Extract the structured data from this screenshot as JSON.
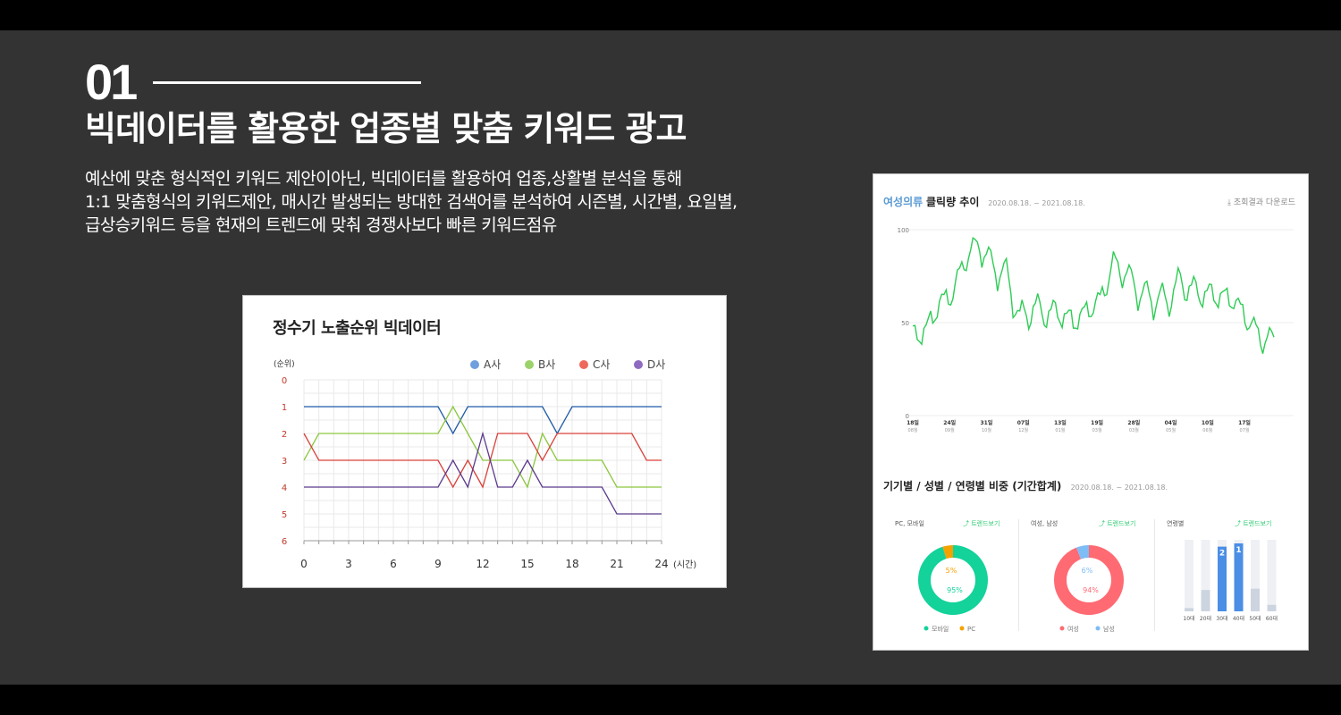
{
  "slide": {
    "number": "01",
    "title": "빅데이터를 활용한 업종별 맞춤 키워드 광고",
    "desc_lines": [
      "예산에 맞춘 형식적인 키워드 제안이아닌, 빅데이터를 활용하여 업종,상활별 분석을 통해",
      "1:1 맞춤형식의 키워드제안, 매시간 발생되는 방대한 검색어를 분석하여 시즌별, 시간별, 요일별,",
      "급상승키워드 등을 현재의 트렌드에 맞춰 경쟁사보다 빠른 키워드점유"
    ]
  },
  "chart1": {
    "title": "정수기 노출순위 빅데이터",
    "ylabel": "(순위)",
    "xlabel": "(시간)",
    "legend": [
      "A사",
      "B사",
      "C사",
      "D사"
    ],
    "colors": {
      "A": "#1f5aa6",
      "B": "#8cc63f",
      "C": "#d9403a",
      "D": "#5b3a8c"
    },
    "legend_colors": [
      "#6f9fdc",
      "#9bd26a",
      "#ee6a5a",
      "#8e6ac0"
    ],
    "grid_color": "#e8e8e8"
  },
  "chart_data": [
    {
      "type": "line",
      "title": "정수기 노출순위 빅데이터",
      "ylabel": "(순위)",
      "xlabel": "(시간)",
      "ylim": [
        0,
        6
      ],
      "y_inverted": true,
      "y_ticks": [
        "0",
        "1",
        "2",
        "3",
        "4",
        "5",
        "6"
      ],
      "xlim": [
        0,
        24
      ],
      "x_ticks": [
        "0",
        "3",
        "6",
        "9",
        "12",
        "15",
        "18",
        "21",
        "24"
      ],
      "x": [
        0,
        1,
        2,
        3,
        4,
        5,
        6,
        7,
        8,
        9,
        10,
        11,
        12,
        13,
        14,
        15,
        16,
        17,
        18,
        19,
        20,
        21,
        22,
        23,
        24
      ],
      "series": [
        {
          "name": "A사",
          "values": [
            1,
            1,
            1,
            1,
            1,
            1,
            1,
            1,
            1,
            1,
            2,
            1,
            1,
            1,
            1,
            1,
            1,
            2,
            1,
            1,
            1,
            1,
            1,
            1,
            1
          ]
        },
        {
          "name": "B사",
          "values": [
            3,
            2,
            2,
            2,
            2,
            2,
            2,
            2,
            2,
            2,
            1,
            2,
            3,
            3,
            3,
            4,
            2,
            3,
            3,
            3,
            3,
            4,
            4,
            4,
            4
          ]
        },
        {
          "name": "C사",
          "values": [
            2,
            3,
            3,
            3,
            3,
            3,
            3,
            3,
            3,
            3,
            4,
            3,
            4,
            2,
            2,
            2,
            3,
            2,
            2,
            2,
            2,
            2,
            2,
            3,
            3
          ]
        },
        {
          "name": "D사",
          "values": [
            4,
            4,
            4,
            4,
            4,
            4,
            4,
            4,
            4,
            4,
            3,
            4,
            2,
            4,
            4,
            3,
            4,
            4,
            4,
            4,
            4,
            5,
            5,
            5,
            5
          ]
        }
      ]
    },
    {
      "type": "line",
      "title": "여성의류 클릭량 추이",
      "ylim": [
        0,
        100
      ],
      "y_ticks": [
        "100",
        "50",
        "0"
      ],
      "x_ticks": [
        [
          "18일",
          "08월"
        ],
        [
          "24일",
          "09월"
        ],
        [
          "31일",
          "10월"
        ],
        [
          "07일",
          "12월"
        ],
        [
          "13일",
          "01월"
        ],
        [
          "19일",
          "03월"
        ],
        [
          "28일",
          "03월"
        ],
        [
          "04일",
          "05월"
        ],
        [
          "10일",
          "06월"
        ],
        [
          "17일",
          "07월"
        ]
      ],
      "color": "#2ecc55",
      "anchors": [
        [
          0,
          42
        ],
        [
          6,
          46
        ],
        [
          12,
          60
        ],
        [
          18,
          66
        ],
        [
          24,
          86
        ],
        [
          30,
          92
        ],
        [
          36,
          80
        ],
        [
          42,
          76
        ],
        [
          48,
          52
        ],
        [
          54,
          58
        ],
        [
          60,
          55
        ],
        [
          66,
          55
        ],
        [
          72,
          50
        ],
        [
          78,
          56
        ],
        [
          84,
          62
        ],
        [
          90,
          82
        ],
        [
          96,
          76
        ],
        [
          102,
          66
        ],
        [
          108,
          63
        ],
        [
          114,
          62
        ],
        [
          120,
          72
        ],
        [
          126,
          67
        ],
        [
          132,
          65
        ],
        [
          138,
          64
        ],
        [
          144,
          62
        ],
        [
          150,
          52
        ],
        [
          156,
          42
        ],
        [
          162,
          40
        ]
      ],
      "amplitude": 14
    },
    {
      "type": "pie",
      "title": "PC, 모바일",
      "labels": [
        "모바일",
        "PC"
      ],
      "values": [
        95,
        5
      ],
      "value_labels": [
        "95%",
        "5%"
      ],
      "colors": [
        "#13d29a",
        "#f5a100"
      ]
    },
    {
      "type": "pie",
      "title": "여성, 남성",
      "labels": [
        "여성",
        "남성"
      ],
      "values": [
        94,
        6
      ],
      "value_labels": [
        "94%",
        "6%"
      ],
      "colors": [
        "#ff6a73",
        "#7dbcf5"
      ]
    },
    {
      "type": "bar",
      "title": "연령별",
      "categories": [
        "10대",
        "20대",
        "30대",
        "40대",
        "50대",
        "60대"
      ],
      "values": [
        5,
        33,
        100,
        105,
        35,
        10
      ],
      "rank_labels": [
        "",
        "",
        "2",
        "1",
        "",
        ""
      ],
      "highlight": [
        false,
        false,
        true,
        true,
        false,
        false
      ]
    }
  ],
  "chart2": {
    "title_accent": "여성의류",
    "title_main": "클릭량 추이",
    "date_range": "2020.08.18. ~ 2021.08.18.",
    "download": "⤓ 조회결과 다운로드",
    "section2_title": "기기별 / 성별 / 연령별 비중 (기간합계)",
    "section2_date": "2020.08.18. ~ 2021.08.18.",
    "sub_titles": [
      "PC, 모바일",
      "여성, 남성",
      "연령별"
    ],
    "trend_label": "⤴ 트렌드보기"
  }
}
